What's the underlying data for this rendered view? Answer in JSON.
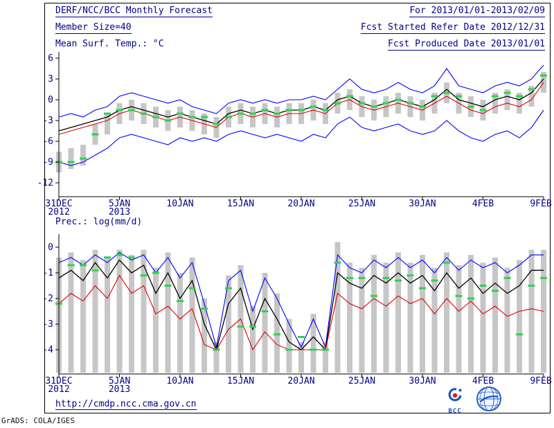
{
  "header": {
    "title": "DERF/NCC/BCC Monthly Forecast",
    "member_size": "Member Size=40",
    "temp_label": "Mean Surf. Temp.: °C",
    "for_range": "For 2013/01/01-2013/02/09",
    "refer_date": "Fcst Started Refer Date 2012/12/31",
    "produced_date": "Fcst Produced Date 2013/01/01"
  },
  "section2_label": "Prec.: log(mm/d)",
  "footer": {
    "url": "http://cmdp.ncc.cma.gov.cn",
    "bcc_label": "BCC"
  },
  "grads_credit": "GrADS: COLA/IGES",
  "colors": {
    "text": "#00008b",
    "axis": "#000000",
    "bar": "#c6c6c6",
    "marker_green": "#2fd24f",
    "blue": "#0000ff",
    "black": "#000000",
    "red": "#dd0000",
    "logo_blue": "#1550b4"
  },
  "chart_data": [
    {
      "type": "line",
      "title": "Mean Surf. Temp.: °C",
      "xtick_positions": [
        0,
        5,
        10,
        15,
        20,
        25,
        30,
        35,
        40
      ],
      "xtick_labels": [
        "31DEC",
        "5JAN",
        "10JAN",
        "15JAN",
        "20JAN",
        "25JAN",
        "30JAN",
        "4FEB",
        "9FEB"
      ],
      "xtick_sublabels": [
        "2012",
        "2013",
        "",
        "",
        "",
        "",
        "",
        "",
        ""
      ],
      "yticks": [
        6,
        3,
        0,
        -3,
        -6,
        -9,
        -12
      ],
      "ylim": [
        -14,
        7
      ],
      "series": [
        {
          "name": "ensemble-max",
          "color": "#0000ff",
          "values": [
            -2.5,
            -2.0,
            -2.5,
            -1.5,
            -1.0,
            0.5,
            1.0,
            0.5,
            0.0,
            -0.5,
            0.0,
            -1.0,
            -1.5,
            -2.0,
            -0.5,
            0.0,
            -0.5,
            0.0,
            -0.5,
            0.0,
            0.0,
            0.5,
            0.0,
            1.5,
            3.0,
            1.5,
            1.0,
            1.5,
            2.5,
            1.5,
            1.0,
            2.0,
            4.5,
            2.0,
            1.5,
            1.0,
            2.0,
            2.5,
            2.0,
            3.0,
            5.0
          ]
        },
        {
          "name": "ensemble-mean",
          "color": "#000000",
          "values": [
            -4.5,
            -4.0,
            -3.5,
            -3.0,
            -2.5,
            -1.5,
            -1.0,
            -1.5,
            -2.0,
            -2.5,
            -2.0,
            -2.5,
            -3.0,
            -3.5,
            -2.0,
            -1.5,
            -2.0,
            -1.5,
            -2.0,
            -1.5,
            -1.5,
            -1.0,
            -1.5,
            0.0,
            0.5,
            -0.5,
            -1.0,
            -0.5,
            0.0,
            -0.5,
            -1.0,
            0.0,
            1.5,
            0.0,
            -0.5,
            -1.0,
            0.0,
            0.5,
            0.0,
            1.0,
            3.0
          ]
        },
        {
          "name": "model-control",
          "color": "#dd0000",
          "values": [
            -5.0,
            -4.5,
            -4.0,
            -3.5,
            -3.0,
            -2.0,
            -1.5,
            -2.0,
            -2.5,
            -3.0,
            -2.5,
            -3.0,
            -3.5,
            -4.0,
            -2.5,
            -2.0,
            -2.5,
            -2.0,
            -2.5,
            -2.0,
            -2.0,
            -1.5,
            -2.0,
            -0.5,
            0.0,
            -1.0,
            -1.5,
            -1.0,
            -0.5,
            -1.0,
            -1.5,
            -0.5,
            0.5,
            -0.5,
            -1.5,
            -2.0,
            -1.0,
            -0.5,
            -1.0,
            0.0,
            2.5
          ]
        },
        {
          "name": "ensemble-min",
          "color": "#0000ff",
          "values": [
            -9.0,
            -9.5,
            -9.0,
            -8.0,
            -7.0,
            -5.5,
            -5.0,
            -5.5,
            -6.0,
            -6.5,
            -5.5,
            -6.0,
            -5.5,
            -6.0,
            -5.0,
            -4.5,
            -5.0,
            -5.5,
            -5.0,
            -5.5,
            -6.0,
            -5.0,
            -5.5,
            -3.5,
            -2.5,
            -4.0,
            -4.5,
            -4.0,
            -3.5,
            -4.5,
            -5.0,
            -4.5,
            -3.0,
            -4.5,
            -5.5,
            -6.0,
            -5.0,
            -4.5,
            -5.5,
            -4.0,
            -1.5
          ]
        }
      ],
      "bars": {
        "name": "ensemble-spread",
        "color": "#c6c6c6",
        "low": [
          -10.5,
          -10.0,
          -9.5,
          -6.5,
          -5.0,
          -3.5,
          -3.0,
          -3.5,
          -4.0,
          -4.5,
          -4.0,
          -4.5,
          -5.0,
          -5.5,
          -4.0,
          -3.5,
          -4.0,
          -3.5,
          -4.0,
          -3.5,
          -3.5,
          -3.0,
          -3.5,
          -2.0,
          -1.5,
          -2.5,
          -3.0,
          -2.5,
          -2.0,
          -2.5,
          -3.0,
          -2.0,
          -0.5,
          -2.0,
          -2.5,
          -3.0,
          -2.0,
          -1.5,
          -2.0,
          -1.0,
          1.0
        ],
        "high": [
          -7.5,
          -7.0,
          -6.5,
          -3.5,
          -2.0,
          -0.5,
          0.0,
          -0.5,
          -1.0,
          -1.5,
          -1.0,
          -1.5,
          -2.0,
          -2.5,
          -1.0,
          -0.5,
          -1.0,
          -0.5,
          -1.0,
          -0.5,
          -0.5,
          0.0,
          -0.5,
          1.0,
          1.5,
          0.5,
          0.0,
          0.5,
          1.0,
          0.5,
          0.0,
          1.0,
          2.5,
          1.0,
          0.5,
          0.0,
          1.0,
          1.5,
          1.0,
          2.0,
          4.0
        ]
      },
      "markers": {
        "name": "observation",
        "color": "#2fd24f",
        "values": [
          -9.0,
          -9.0,
          -8.5,
          -5.0,
          -2.0,
          -1.5,
          -1.5,
          -2.0,
          -2.5,
          -3.0,
          -2.0,
          -2.5,
          -2.5,
          -3.5,
          -2.5,
          -2.0,
          -2.0,
          -1.5,
          -2.0,
          -1.5,
          -1.5,
          -1.0,
          -1.5,
          -0.5,
          0.5,
          -0.5,
          -1.0,
          -0.5,
          0.0,
          -0.5,
          -1.0,
          0.5,
          1.0,
          0.5,
          -1.0,
          -1.5,
          0.5,
          1.0,
          0.5,
          1.5,
          3.5
        ]
      }
    },
    {
      "type": "line",
      "title": "Prec.: log(mm/d)",
      "xtick_positions": [
        0,
        5,
        10,
        15,
        20,
        25,
        30,
        35,
        40
      ],
      "xtick_labels": [
        "31DEC",
        "5JAN",
        "10JAN",
        "15JAN",
        "20JAN",
        "25JAN",
        "30JAN",
        "4FEB",
        "9FEB"
      ],
      "xtick_sublabels": [
        "2012",
        "2013",
        "",
        "",
        "",
        "",
        "",
        "",
        ""
      ],
      "yticks": [
        0,
        -1,
        -2,
        -3,
        -4
      ],
      "ylim": [
        -5,
        0.5
      ],
      "series": [
        {
          "name": "ensemble-max",
          "color": "#0000ff",
          "values": [
            -0.6,
            -0.4,
            -0.7,
            -0.3,
            -0.6,
            -0.2,
            -0.5,
            -0.3,
            -1.0,
            -0.4,
            -1.2,
            -0.6,
            -2.2,
            -3.9,
            -1.3,
            -0.9,
            -2.5,
            -1.2,
            -2.0,
            -3.0,
            -3.9,
            -2.8,
            -3.9,
            -0.3,
            -0.8,
            -1.0,
            -0.5,
            -0.8,
            -0.4,
            -0.8,
            -0.5,
            -1.0,
            -0.4,
            -0.9,
            -0.5,
            -0.8,
            -0.6,
            -1.0,
            -0.7,
            -0.3,
            -0.3
          ]
        },
        {
          "name": "ensemble-mean",
          "color": "#000000",
          "values": [
            -1.2,
            -0.9,
            -1.3,
            -0.6,
            -1.2,
            -0.5,
            -1.0,
            -0.7,
            -1.8,
            -1.0,
            -2.0,
            -1.3,
            -3.0,
            -4.0,
            -2.2,
            -1.6,
            -3.2,
            -2.0,
            -2.8,
            -3.7,
            -4.0,
            -3.5,
            -4.0,
            -1.0,
            -1.4,
            -1.6,
            -1.1,
            -1.4,
            -1.0,
            -1.4,
            -1.1,
            -1.7,
            -1.0,
            -1.6,
            -1.2,
            -1.8,
            -1.4,
            -1.8,
            -1.5,
            -0.9,
            -0.9
          ]
        },
        {
          "name": "ensemble-min",
          "color": "#dd0000",
          "values": [
            -2.2,
            -1.8,
            -2.1,
            -1.5,
            -2.0,
            -1.1,
            -1.8,
            -1.5,
            -2.6,
            -2.3,
            -2.8,
            -2.4,
            -3.8,
            -4.0,
            -3.2,
            -2.8,
            -4.0,
            -3.3,
            -3.8,
            -4.0,
            -4.0,
            -4.0,
            -4.0,
            -1.8,
            -2.2,
            -2.4,
            -2.0,
            -2.3,
            -1.9,
            -2.2,
            -2.0,
            -2.6,
            -2.0,
            -2.5,
            -2.1,
            -2.6,
            -2.3,
            -2.7,
            -2.5,
            -2.4,
            -2.5
          ]
        }
      ],
      "bars": {
        "name": "ensemble-spread",
        "color": "#c6c6c6",
        "low": -4.9,
        "high": [
          -0.4,
          -0.2,
          -0.5,
          -0.1,
          -0.4,
          -0.1,
          -0.3,
          -0.1,
          -0.8,
          -0.2,
          -1.0,
          -0.4,
          -2.0,
          -3.7,
          -1.1,
          -0.7,
          -2.3,
          -1.0,
          -1.8,
          -2.8,
          -3.7,
          -2.6,
          -3.7,
          0.2,
          -0.6,
          -0.8,
          -0.3,
          -0.6,
          -0.2,
          -0.6,
          -0.3,
          -0.8,
          -0.2,
          -0.7,
          -0.3,
          -0.6,
          -0.4,
          -0.8,
          -0.5,
          -0.1,
          -0.1
        ]
      },
      "markers": {
        "name": "observation",
        "color": "#2fd24f",
        "values": [
          -2.2,
          -0.7,
          -0.7,
          -0.9,
          -0.4,
          -0.3,
          -0.4,
          -1.1,
          -1.0,
          -1.5,
          -2.1,
          -1.6,
          -2.4,
          -4.0,
          -1.6,
          -3.1,
          -3.1,
          -2.5,
          -3.4,
          -4.0,
          -3.5,
          -4.0,
          -4.0,
          -0.6,
          -1.2,
          -1.2,
          -1.9,
          -1.2,
          -1.3,
          -1.1,
          -1.6,
          -1.3,
          -0.6,
          -1.9,
          -2.0,
          -1.5,
          -1.7,
          -1.2,
          -3.4,
          -1.5,
          -1.2
        ]
      }
    }
  ]
}
